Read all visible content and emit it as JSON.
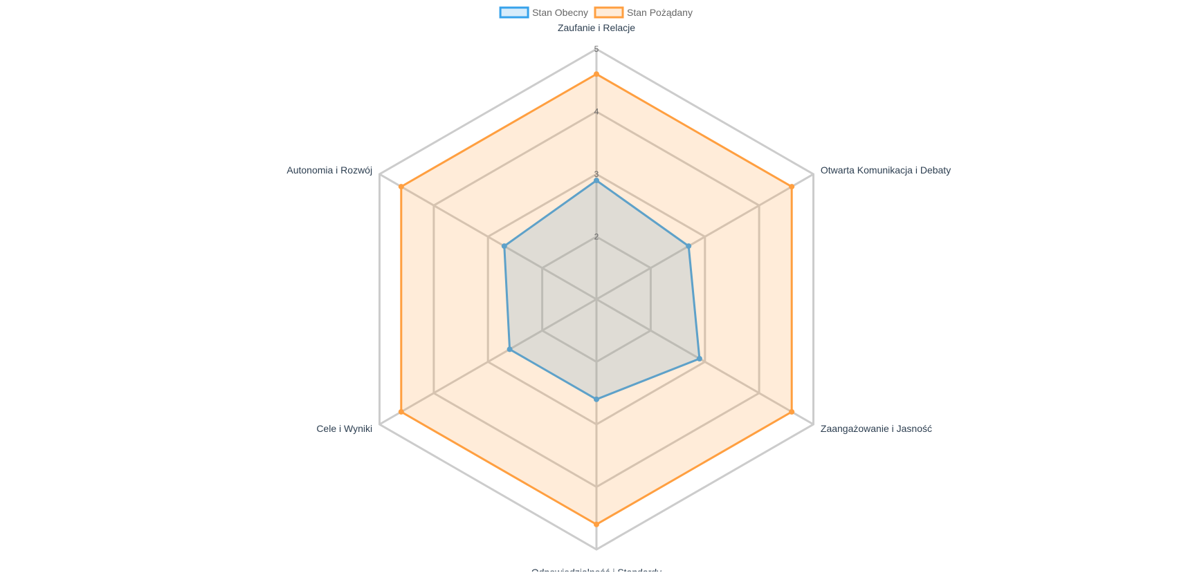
{
  "chart_data": {
    "type": "radar",
    "categories": [
      "Zaufanie i Relacje",
      "Otwarta Komunikacja i Debaty",
      "Zaangażowanie i Jasność",
      "Odpowiedzialność i Standardy",
      "Cele i Wyniki",
      "Autonomia i Rozwój"
    ],
    "series": [
      {
        "name": "Stan Obecny",
        "values": [
          2.9,
          2.7,
          2.9,
          2.6,
          2.6,
          2.7
        ],
        "stroke": "#36a2eb",
        "fill": "rgba(54,162,235,0.2)"
      },
      {
        "name": "Stan Pożądany",
        "values": [
          4.6,
          4.6,
          4.6,
          4.6,
          4.6,
          4.6
        ],
        "stroke": "#ff9f40",
        "fill": "rgba(255,159,64,0.2)"
      }
    ],
    "r_min": 1,
    "r_max": 5,
    "ticks": [
      2,
      3,
      4,
      5
    ],
    "grid_color": "#cccccc",
    "legend_position": "top",
    "grid": true
  }
}
